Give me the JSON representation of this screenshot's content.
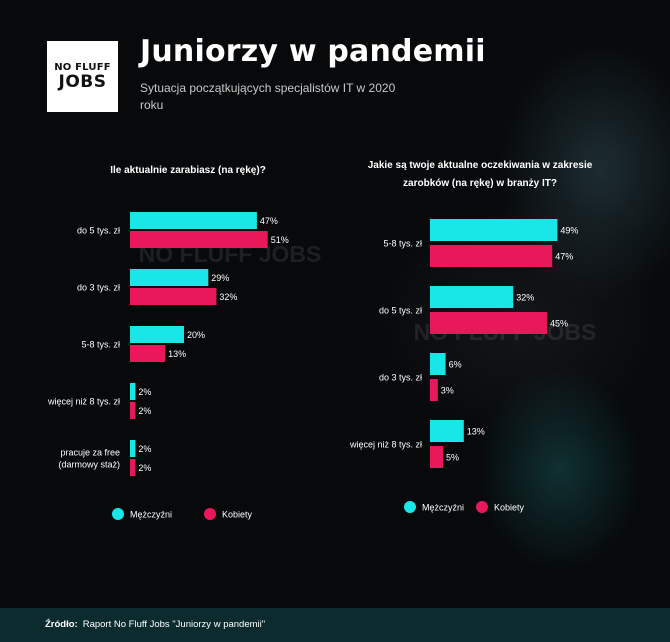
{
  "header": {
    "logo_line1": "NO FLUFF",
    "logo_line2": "JOBS",
    "title": "Juniorzy w pandemii",
    "subtitle": "Sytuacja początkujących specjalistów IT w 2020 roku"
  },
  "watermark": "NO FLUFF JOBS",
  "colors": {
    "men": "#19e6e6",
    "women": "#e8185a",
    "background": "#07090b",
    "footer": "#0c2b2f"
  },
  "chart_data": [
    {
      "type": "bar",
      "orientation": "horizontal",
      "title": "Ile aktualnie zarabiasz (na rękę)?",
      "categories": [
        "do 5 tys. zł",
        "do 3 tys. zł",
        "5-8 tys. zł",
        "więcej niż 8 tys. zł",
        "pracuje za free (darmowy staż)"
      ],
      "series": [
        {
          "name": "Mężczyźni",
          "values": [
            47,
            29,
            20,
            2,
            2
          ]
        },
        {
          "name": "Kobiety",
          "values": [
            51,
            32,
            13,
            2,
            2
          ]
        }
      ],
      "value_suffix": "%",
      "legend": "bottom"
    },
    {
      "type": "bar",
      "orientation": "horizontal",
      "title": "Jakie są twoje aktualne oczekiwania w zakresie zarobków (na rękę) w branży IT?",
      "categories": [
        "5-8 tys. zł",
        "do 5 tys. zł",
        "do 3 tys. zł",
        "więcej niż 8 tys. zł"
      ],
      "series": [
        {
          "name": "Mężczyźni",
          "values": [
            49,
            32,
            6,
            13
          ]
        },
        {
          "name": "Kobiety",
          "values": [
            47,
            45,
            3,
            5
          ]
        }
      ],
      "value_suffix": "%",
      "legend": "bottom"
    }
  ],
  "footer": {
    "label": "Źródło:",
    "text": "Raport No Fluff Jobs \"Juniorzy w pandemii\""
  }
}
